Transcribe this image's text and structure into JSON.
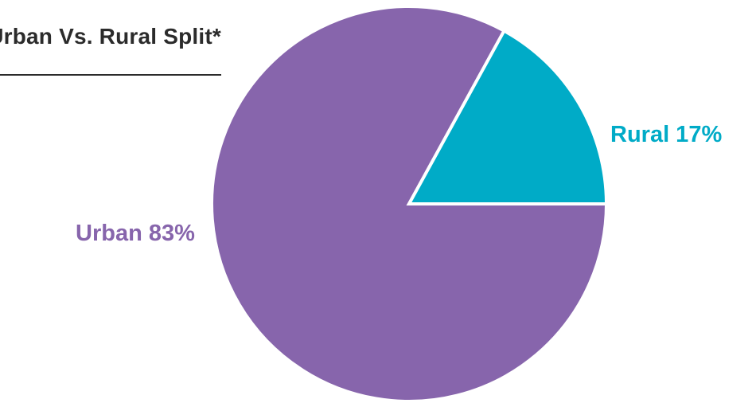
{
  "title": "Urban Vs. Rural Split*",
  "colors": {
    "title": "#2b2b2b",
    "urban": "#8765ac",
    "rural": "#00abc7",
    "separator": "#ffffff"
  },
  "chart_data": {
    "type": "pie",
    "title": "Urban Vs. Rural Split*",
    "slices": [
      {
        "label": "Urban 83%",
        "value": 83,
        "color": "#8765ac"
      },
      {
        "label": "Rural 17%",
        "value": 17,
        "color": "#00abc7"
      }
    ]
  }
}
